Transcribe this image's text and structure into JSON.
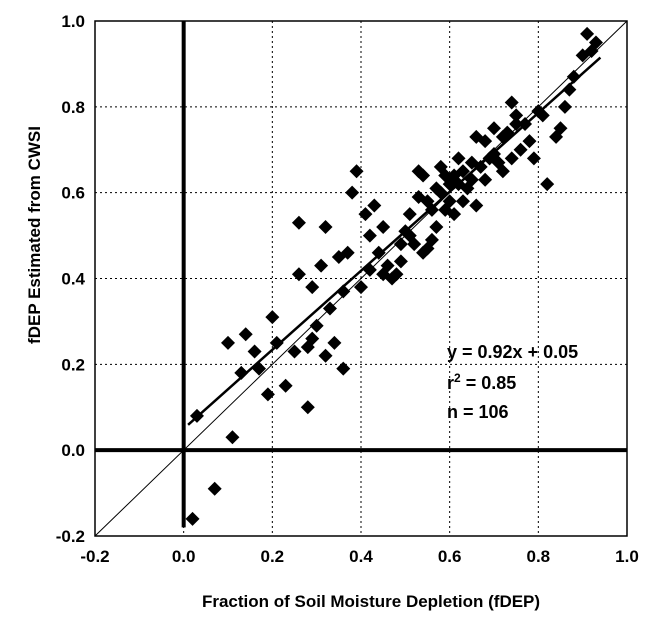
{
  "chart_data": {
    "type": "scatter",
    "title": "",
    "xlabel": "Fraction of Soil Moisture Depletion (fDEP)",
    "ylabel": "fDEP Estimated from CWSI",
    "xlim": [
      -0.2,
      1.0
    ],
    "ylim": [
      -0.2,
      1.0
    ],
    "x_ticks": [
      "-0.2",
      "0.0",
      "0.2",
      "0.4",
      "0.6",
      "0.8",
      "1.0"
    ],
    "y_ticks": [
      "-0.2",
      "0.0",
      "0.2",
      "0.4",
      "0.6",
      "0.8",
      "1.0"
    ],
    "grid": true,
    "grid_style": "dotted",
    "marker": "diamond",
    "marker_color": "#000000",
    "fit_line": {
      "slope": 0.92,
      "intercept": 0.05,
      "x_range": [
        0.01,
        0.94
      ]
    },
    "reference_line": {
      "slope": 1,
      "intercept": 0
    },
    "annotations": {
      "equation": "y = 0.92x + 0.05",
      "r2_prefix": "r",
      "r2_sup": "2",
      "r2_value": " = 0.85",
      "n": "n = 106"
    },
    "points": [
      [
        0.02,
        -0.16
      ],
      [
        0.07,
        -0.09
      ],
      [
        0.03,
        0.08
      ],
      [
        0.11,
        0.03
      ],
      [
        0.1,
        0.25
      ],
      [
        0.13,
        0.18
      ],
      [
        0.14,
        0.27
      ],
      [
        0.16,
        0.23
      ],
      [
        0.17,
        0.19
      ],
      [
        0.19,
        0.13
      ],
      [
        0.2,
        0.31
      ],
      [
        0.21,
        0.25
      ],
      [
        0.23,
        0.15
      ],
      [
        0.25,
        0.23
      ],
      [
        0.26,
        0.41
      ],
      [
        0.26,
        0.53
      ],
      [
        0.28,
        0.24
      ],
      [
        0.29,
        0.26
      ],
      [
        0.28,
        0.1
      ],
      [
        0.29,
        0.38
      ],
      [
        0.3,
        0.29
      ],
      [
        0.31,
        0.43
      ],
      [
        0.32,
        0.52
      ],
      [
        0.32,
        0.22
      ],
      [
        0.33,
        0.33
      ],
      [
        0.34,
        0.25
      ],
      [
        0.35,
        0.45
      ],
      [
        0.36,
        0.19
      ],
      [
        0.37,
        0.46
      ],
      [
        0.38,
        0.6
      ],
      [
        0.39,
        0.65
      ],
      [
        0.4,
        0.38
      ],
      [
        0.41,
        0.55
      ],
      [
        0.42,
        0.5
      ],
      [
        0.43,
        0.57
      ],
      [
        0.44,
        0.46
      ],
      [
        0.45,
        0.52
      ],
      [
        0.46,
        0.43
      ],
      [
        0.47,
        0.4
      ],
      [
        0.48,
        0.41
      ],
      [
        0.49,
        0.44
      ],
      [
        0.5,
        0.51
      ],
      [
        0.51,
        0.5
      ],
      [
        0.52,
        0.48
      ],
      [
        0.53,
        0.65
      ],
      [
        0.54,
        0.46
      ],
      [
        0.55,
        0.47
      ],
      [
        0.56,
        0.56
      ],
      [
        0.57,
        0.52
      ],
      [
        0.58,
        0.6
      ],
      [
        0.59,
        0.64
      ],
      [
        0.6,
        0.62
      ],
      [
        0.61,
        0.55
      ],
      [
        0.62,
        0.68
      ],
      [
        0.63,
        0.58
      ],
      [
        0.64,
        0.61
      ],
      [
        0.65,
        0.63
      ],
      [
        0.66,
        0.57
      ],
      [
        0.67,
        0.66
      ],
      [
        0.68,
        0.72
      ],
      [
        0.69,
        0.68
      ],
      [
        0.7,
        0.75
      ],
      [
        0.71,
        0.67
      ],
      [
        0.72,
        0.73
      ],
      [
        0.73,
        0.74
      ],
      [
        0.74,
        0.81
      ],
      [
        0.75,
        0.78
      ],
      [
        0.76,
        0.7
      ],
      [
        0.77,
        0.76
      ],
      [
        0.78,
        0.72
      ],
      [
        0.8,
        0.79
      ],
      [
        0.82,
        0.62
      ],
      [
        0.84,
        0.73
      ],
      [
        0.85,
        0.75
      ],
      [
        0.87,
        0.84
      ],
      [
        0.88,
        0.87
      ],
      [
        0.9,
        0.92
      ],
      [
        0.91,
        0.97
      ],
      [
        0.92,
        0.93
      ],
      [
        0.93,
        0.95
      ],
      [
        0.55,
        0.58
      ],
      [
        0.6,
        0.58
      ],
      [
        0.65,
        0.67
      ],
      [
        0.7,
        0.69
      ],
      [
        0.59,
        0.56
      ],
      [
        0.51,
        0.55
      ],
      [
        0.58,
        0.66
      ],
      [
        0.62,
        0.62
      ],
      [
        0.45,
        0.41
      ],
      [
        0.53,
        0.59
      ],
      [
        0.72,
        0.65
      ],
      [
        0.66,
        0.73
      ],
      [
        0.57,
        0.61
      ],
      [
        0.79,
        0.68
      ],
      [
        0.63,
        0.65
      ],
      [
        0.75,
        0.76
      ],
      [
        0.42,
        0.42
      ],
      [
        0.49,
        0.48
      ],
      [
        0.56,
        0.49
      ],
      [
        0.68,
        0.63
      ],
      [
        0.81,
        0.78
      ],
      [
        0.86,
        0.8
      ],
      [
        0.74,
        0.68
      ],
      [
        0.36,
        0.37
      ],
      [
        0.61,
        0.64
      ],
      [
        0.54,
        0.64
      ]
    ]
  }
}
